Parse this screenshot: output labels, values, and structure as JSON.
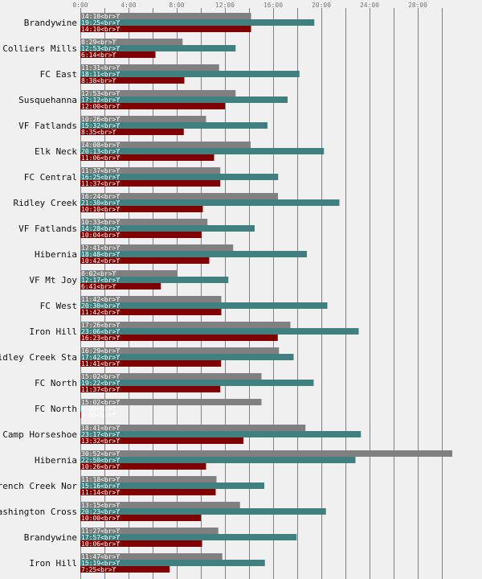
{
  "chart_data": {
    "type": "bar",
    "orientation": "horizontal",
    "xlim": [
      0,
      31
    ],
    "x_unit": "minutes",
    "x_ticks": [
      "0:00",
      "4:00",
      "8:00",
      "12:00",
      "16:00",
      "20:00",
      "24:00",
      "28:00"
    ],
    "grid": true,
    "label_suffix": "<br>ϒ",
    "categories": [
      "Brandywine",
      "Colliers Mills",
      "FC East",
      "Susquehanna",
      "VF Fatlands",
      "Elk Neck",
      "FC Central",
      "Ridley Creek",
      "VF Fatlands",
      "Hibernia",
      "VF Mt Joy",
      "FC West",
      "Iron Hill",
      "Ridley Creek Sta",
      "FC North",
      "FC North",
      "Camp Horseshoe",
      "Hibernia",
      "French Creek Nor",
      "Washington Cross",
      "Brandywine",
      "Iron Hill"
    ],
    "series": [
      {
        "color": "#808080",
        "values": [
          "14:10",
          "8:29",
          "11:31",
          "12:53",
          "10:26",
          "14:08",
          "11:37",
          "16:24",
          "10:33",
          "12:41",
          "8:02",
          "11:42",
          "17:26",
          "16:29",
          "15:02",
          "15:02",
          "18:41",
          "30:52",
          "11:18",
          "13:15",
          "11:27",
          "11:47"
        ]
      },
      {
        "color": "#3f7f7f",
        "values": [
          "19:25",
          "12:53",
          "18:11",
          "17:12",
          "15:32",
          "20:13",
          "16:25",
          "21:30",
          "14:28",
          "18:48",
          "12:17",
          "20:30",
          "23:06",
          "17:42",
          "19:22",
          "0:00",
          "23:17",
          "22:50",
          "15:16",
          "20:23",
          "17:57",
          "15:19"
        ]
      },
      {
        "color": "#7f0000",
        "values": [
          "14:10",
          "6:14",
          "8:38",
          "12:00",
          "8:35",
          "11:06",
          "11:37",
          "10:10",
          "10:04",
          "10:42",
          "6:41",
          "11:42",
          "16:23",
          "11:41",
          "11:37",
          "0:00",
          "13:32",
          "10:26",
          "11:14",
          "10:00",
          "10:06",
          "7:25"
        ]
      }
    ]
  }
}
